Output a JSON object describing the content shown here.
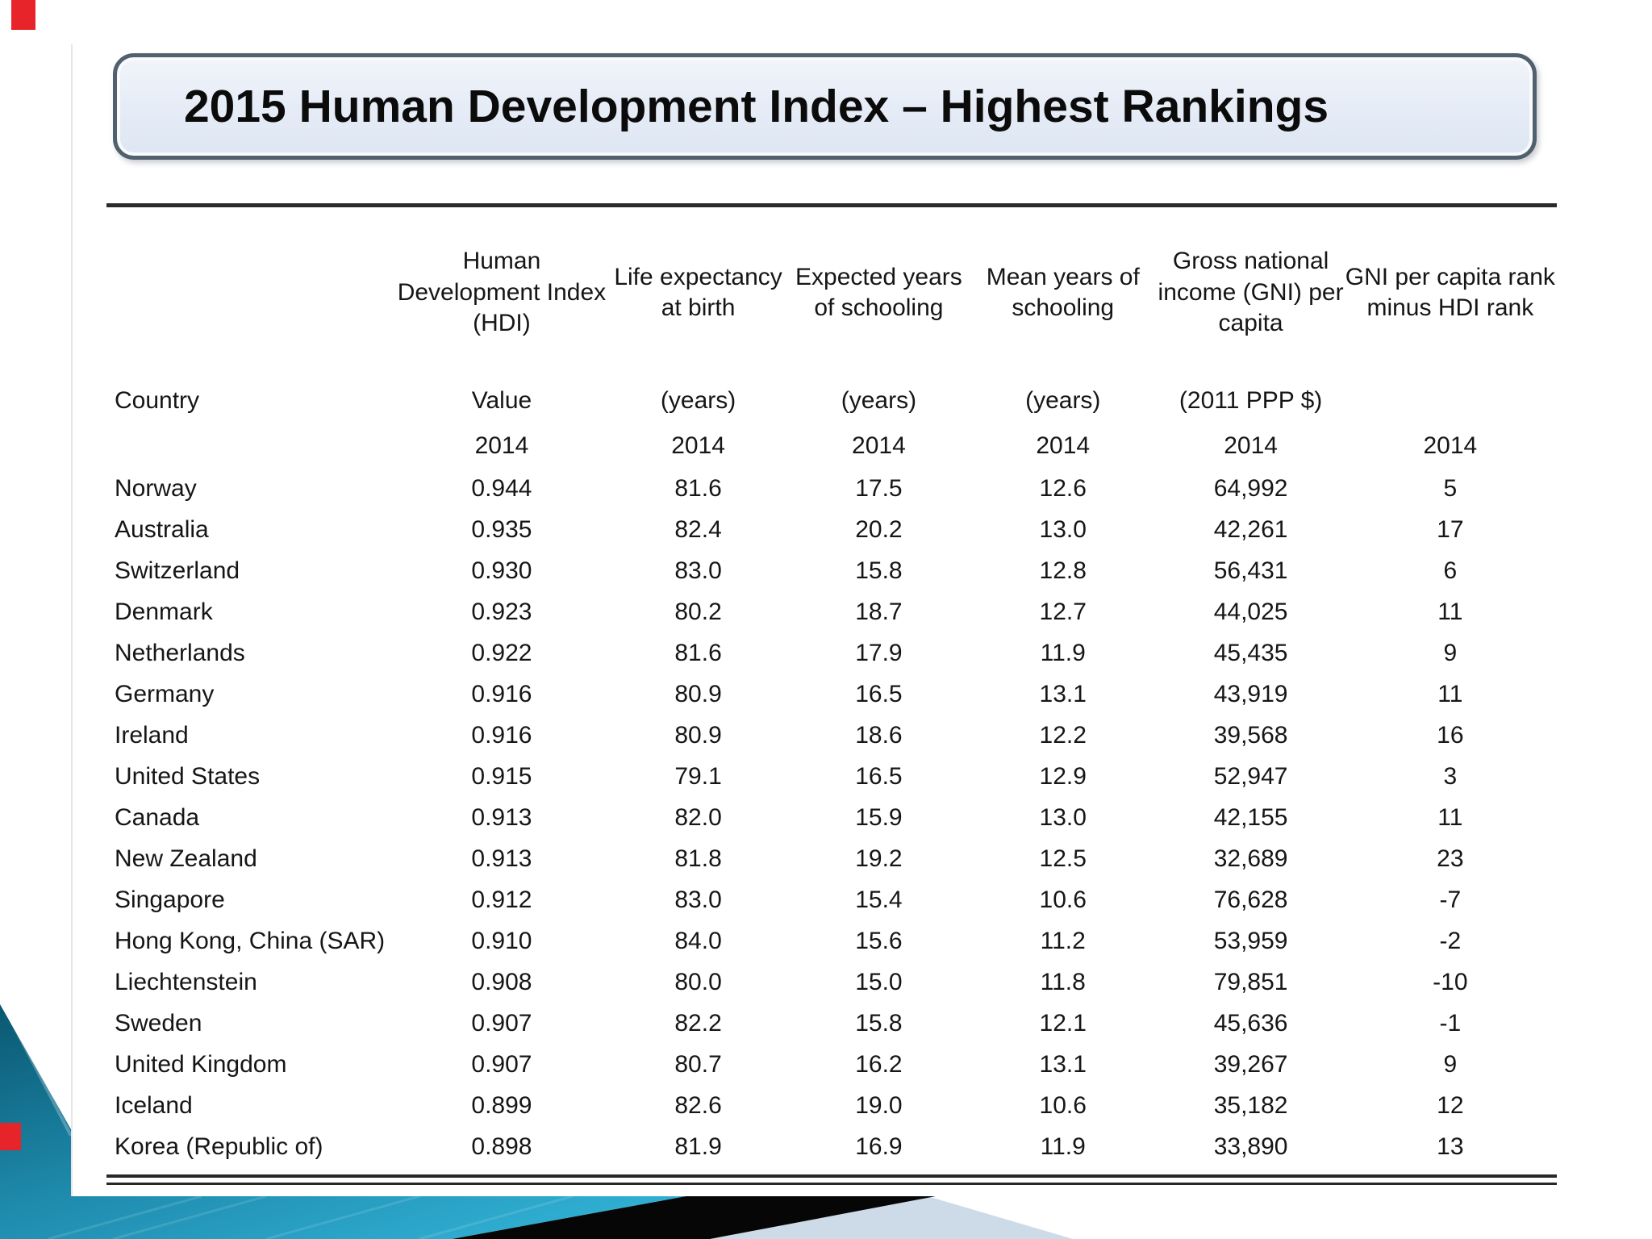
{
  "title": "2015 Human Development Index – Highest Rankings",
  "table": {
    "country_header": "Country",
    "columns": [
      {
        "title": "Human Development Index (HDI)",
        "unit": "Value",
        "year": "2014"
      },
      {
        "title": "Life expectancy at birth",
        "unit": "(years)",
        "year": "2014"
      },
      {
        "title": "Expected years of schooling",
        "unit": "(years)",
        "year": "2014"
      },
      {
        "title": "Mean years of schooling",
        "unit": "(years)",
        "year": "2014"
      },
      {
        "title": "Gross national income (GNI) per capita",
        "unit": "(2011 PPP $)",
        "year": "2014"
      },
      {
        "title": "GNI per capita rank minus HDI rank",
        "unit": "",
        "year": "2014"
      }
    ],
    "rows": [
      {
        "country": "Norway",
        "values": [
          "0.944",
          "81.6",
          "17.5",
          "12.6",
          "64,992",
          "5"
        ]
      },
      {
        "country": "Australia",
        "values": [
          "0.935",
          "82.4",
          "20.2",
          "13.0",
          "42,261",
          "17"
        ]
      },
      {
        "country": "Switzerland",
        "values": [
          "0.930",
          "83.0",
          "15.8",
          "12.8",
          "56,431",
          "6"
        ]
      },
      {
        "country": "Denmark",
        "values": [
          "0.923",
          "80.2",
          "18.7",
          "12.7",
          "44,025",
          "11"
        ]
      },
      {
        "country": "Netherlands",
        "values": [
          "0.922",
          "81.6",
          "17.9",
          "11.9",
          "45,435",
          "9"
        ]
      },
      {
        "country": "Germany",
        "values": [
          "0.916",
          "80.9",
          "16.5",
          "13.1",
          "43,919",
          "11"
        ]
      },
      {
        "country": "Ireland",
        "values": [
          "0.916",
          "80.9",
          "18.6",
          "12.2",
          "39,568",
          "16"
        ]
      },
      {
        "country": "United States",
        "values": [
          "0.915",
          "79.1",
          "16.5",
          "12.9",
          "52,947",
          "3"
        ]
      },
      {
        "country": "Canada",
        "values": [
          "0.913",
          "82.0",
          "15.9",
          "13.0",
          "42,155",
          "11"
        ]
      },
      {
        "country": "New Zealand",
        "values": [
          "0.913",
          "81.8",
          "19.2",
          "12.5",
          "32,689",
          "23"
        ]
      },
      {
        "country": "Singapore",
        "values": [
          "0.912",
          "83.0",
          "15.4",
          "10.6",
          "76,628",
          "-7"
        ]
      },
      {
        "country": "Hong Kong, China (SAR)",
        "values": [
          "0.910",
          "84.0",
          "15.6",
          "11.2",
          "53,959",
          "-2"
        ]
      },
      {
        "country": "Liechtenstein",
        "values": [
          "0.908",
          "80.0",
          "15.0",
          "11.8",
          "79,851",
          "-10"
        ]
      },
      {
        "country": "Sweden",
        "values": [
          "0.907",
          "82.2",
          "15.8",
          "12.1",
          "45,636",
          "-1"
        ]
      },
      {
        "country": "United Kingdom",
        "values": [
          "0.907",
          "80.7",
          "16.2",
          "13.1",
          "39,267",
          "9"
        ]
      },
      {
        "country": "Iceland",
        "values": [
          "0.899",
          "82.6",
          "19.0",
          "10.6",
          "35,182",
          "12"
        ]
      },
      {
        "country": "Korea (Republic of)",
        "values": [
          "0.898",
          "81.9",
          "16.9",
          "11.9",
          "33,890",
          "13"
        ]
      }
    ]
  },
  "colors": {
    "accent_red": "#e8242b",
    "title_border": "#51606f",
    "title_fill_top": "#f1f4fa",
    "title_fill_bottom": "#dde6f2",
    "rule": "#2b2b2b",
    "teal_dark": "#0a5871",
    "teal_mid": "#1e89ab",
    "teal_bright": "#31b2d6",
    "black_band": "#060606",
    "powder_blue": "#ccdbe7"
  },
  "decor": {
    "bottom_left_ribbon": "teal-gradient-ribbon",
    "black_diagonal_band": "black-band",
    "powder_wedge": "powder-blue-wedge"
  }
}
